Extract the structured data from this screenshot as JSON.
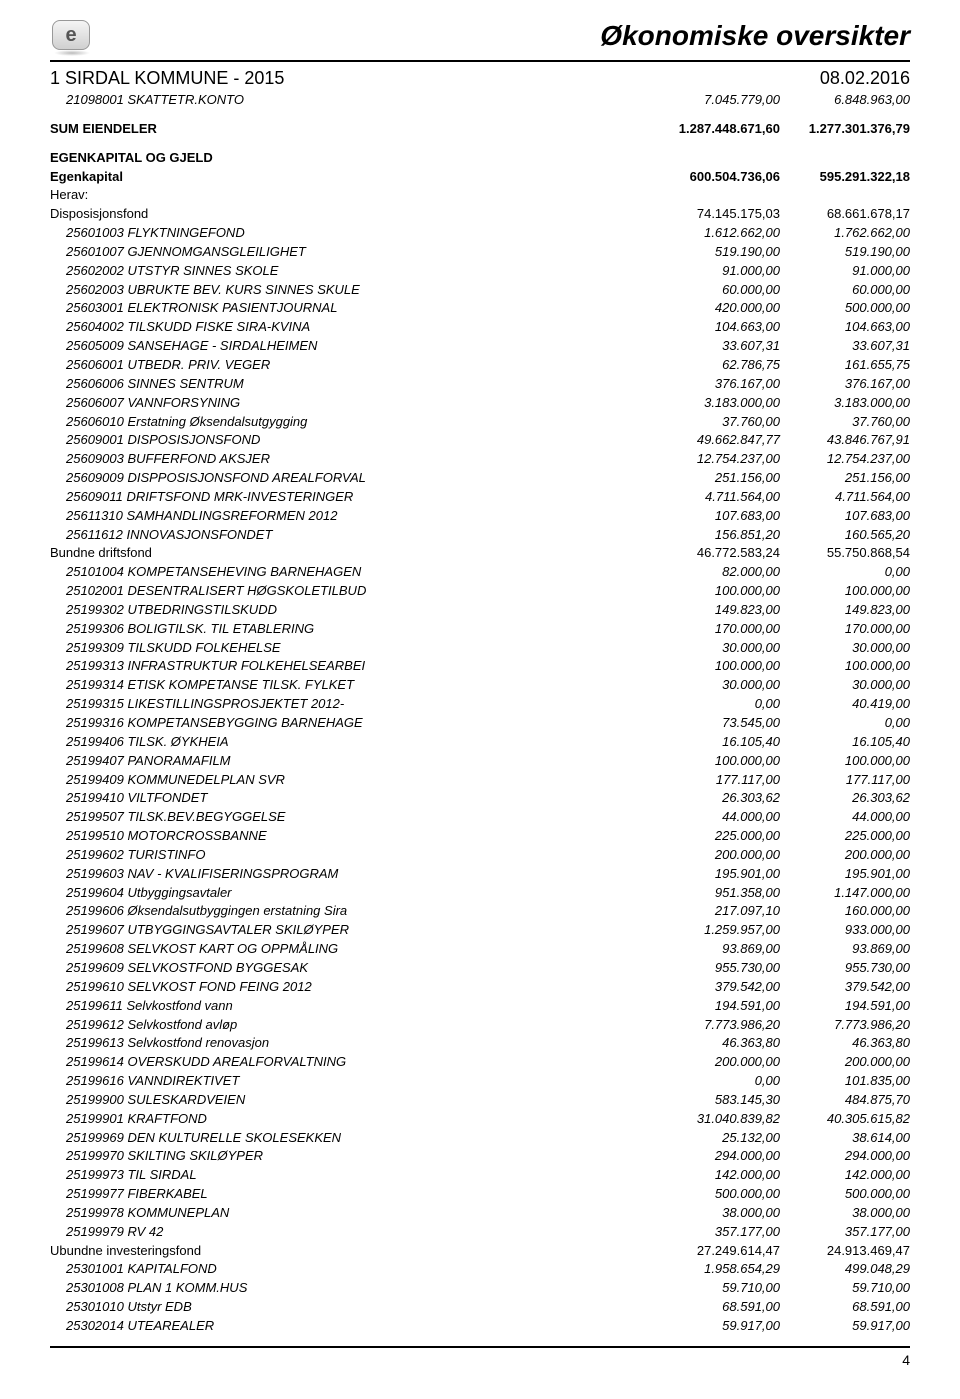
{
  "header": {
    "title": "Økonomiske oversikter",
    "org": "1 SIRDAL KOMMUNE - 2015",
    "date": "08.02.2016"
  },
  "top_rows": [
    {
      "label": "21098001 SKATTETR.KONTO",
      "c1": "7.045.779,00",
      "c2": "6.848.963,00",
      "italic": true,
      "indent": 1
    }
  ],
  "sum_row": {
    "label": "SUM EIENDELER",
    "c1": "1.287.448.671,60",
    "c2": "1.277.301.376,79"
  },
  "equity_header": {
    "label": "EGENKAPITAL OG GJELD"
  },
  "equity_rows": [
    {
      "label": "Egenkapital",
      "c1": "600.504.736,06",
      "c2": "595.291.322,18",
      "bold": true,
      "indent": 0
    },
    {
      "label": "Herav:",
      "indent": 0
    },
    {
      "label": "Disposisjonsfond",
      "c1": "74.145.175,03",
      "c2": "68.661.678,17",
      "indent": 0
    },
    {
      "label": "25601003 FLYKTNINGEFOND",
      "c1": "1.612.662,00",
      "c2": "1.762.662,00",
      "italic": true,
      "indent": 1
    },
    {
      "label": "25601007 GJENNOMGANSGLEILIGHET",
      "c1": "519.190,00",
      "c2": "519.190,00",
      "italic": true,
      "indent": 1
    },
    {
      "label": "25602002 UTSTYR SINNES SKOLE",
      "c1": "91.000,00",
      "c2": "91.000,00",
      "italic": true,
      "indent": 1
    },
    {
      "label": "25602003 UBRUKTE BEV. KURS SINNES SKULE",
      "c1": "60.000,00",
      "c2": "60.000,00",
      "italic": true,
      "indent": 1
    },
    {
      "label": "25603001 ELEKTRONISK PASIENTJOURNAL",
      "c1": "420.000,00",
      "c2": "500.000,00",
      "italic": true,
      "indent": 1
    },
    {
      "label": "25604002 TILSKUDD FISKE SIRA-KVINA",
      "c1": "104.663,00",
      "c2": "104.663,00",
      "italic": true,
      "indent": 1
    },
    {
      "label": "25605009 SANSEHAGE - SIRDALHEIMEN",
      "c1": "33.607,31",
      "c2": "33.607,31",
      "italic": true,
      "indent": 1
    },
    {
      "label": "25606001 UTBEDR. PRIV. VEGER",
      "c1": "62.786,75",
      "c2": "161.655,75",
      "italic": true,
      "indent": 1
    },
    {
      "label": "25606006 SINNES SENTRUM",
      "c1": "376.167,00",
      "c2": "376.167,00",
      "italic": true,
      "indent": 1
    },
    {
      "label": "25606007 VANNFORSYNING",
      "c1": "3.183.000,00",
      "c2": "3.183.000,00",
      "italic": true,
      "indent": 1
    },
    {
      "label": "25606010 Erstatning Øksendalsutgygging",
      "c1": "37.760,00",
      "c2": "37.760,00",
      "italic": true,
      "indent": 1
    },
    {
      "label": "25609001 DISPOSISJONSFOND",
      "c1": "49.662.847,77",
      "c2": "43.846.767,91",
      "italic": true,
      "indent": 1
    },
    {
      "label": "25609003 BUFFERFOND AKSJER",
      "c1": "12.754.237,00",
      "c2": "12.754.237,00",
      "italic": true,
      "indent": 1
    },
    {
      "label": "25609009 DISPPOSISJONSFOND AREALFORVAL",
      "c1": "251.156,00",
      "c2": "251.156,00",
      "italic": true,
      "indent": 1
    },
    {
      "label": "25609011 DRIFTSFOND MRK-INVESTERINGER",
      "c1": "4.711.564,00",
      "c2": "4.711.564,00",
      "italic": true,
      "indent": 1
    },
    {
      "label": "25611310 SAMHANDLINGSREFORMEN 2012",
      "c1": "107.683,00",
      "c2": "107.683,00",
      "italic": true,
      "indent": 1
    },
    {
      "label": "25611612 INNOVASJONSFONDET",
      "c1": "156.851,20",
      "c2": "160.565,20",
      "italic": true,
      "indent": 1
    },
    {
      "label": "Bundne driftsfond",
      "c1": "46.772.583,24",
      "c2": "55.750.868,54",
      "indent": 0
    },
    {
      "label": "25101004 KOMPETANSEHEVING BARNEHAGEN",
      "c1": "82.000,00",
      "c2": "0,00",
      "italic": true,
      "indent": 1
    },
    {
      "label": "25102001 DESENTRALISERT HØGSKOLETILBUD",
      "c1": "100.000,00",
      "c2": "100.000,00",
      "italic": true,
      "indent": 1
    },
    {
      "label": "25199302 UTBEDRINGSTILSKUDD",
      "c1": "149.823,00",
      "c2": "149.823,00",
      "italic": true,
      "indent": 1
    },
    {
      "label": "25199306 BOLIGTILSK. TIL ETABLERING",
      "c1": "170.000,00",
      "c2": "170.000,00",
      "italic": true,
      "indent": 1
    },
    {
      "label": "25199309 TILSKUDD FOLKEHELSE",
      "c1": "30.000,00",
      "c2": "30.000,00",
      "italic": true,
      "indent": 1
    },
    {
      "label": "25199313 INFRASTRUKTUR FOLKEHELSEARBEI",
      "c1": "100.000,00",
      "c2": "100.000,00",
      "italic": true,
      "indent": 1
    },
    {
      "label": "25199314 ETISK KOMPETANSE TILSK. FYLKET",
      "c1": "30.000,00",
      "c2": "30.000,00",
      "italic": true,
      "indent": 1
    },
    {
      "label": "25199315 LIKESTILLINGSPROSJEKTET 2012-",
      "c1": "0,00",
      "c2": "40.419,00",
      "italic": true,
      "indent": 1
    },
    {
      "label": "25199316 KOMPETANSEBYGGING BARNEHAGE",
      "c1": "73.545,00",
      "c2": "0,00",
      "italic": true,
      "indent": 1
    },
    {
      "label": "25199406 TILSK. ØYKHEIA",
      "c1": "16.105,40",
      "c2": "16.105,40",
      "italic": true,
      "indent": 1
    },
    {
      "label": "25199407 PANORAMAFILM",
      "c1": "100.000,00",
      "c2": "100.000,00",
      "italic": true,
      "indent": 1
    },
    {
      "label": "25199409 KOMMUNEDELPLAN SVR",
      "c1": "177.117,00",
      "c2": "177.117,00",
      "italic": true,
      "indent": 1
    },
    {
      "label": "25199410 VILTFONDET",
      "c1": "26.303,62",
      "c2": "26.303,62",
      "italic": true,
      "indent": 1
    },
    {
      "label": "25199507 TILSK.BEV.BEGYGGELSE",
      "c1": "44.000,00",
      "c2": "44.000,00",
      "italic": true,
      "indent": 1
    },
    {
      "label": "25199510 MOTORCROSSBANNE",
      "c1": "225.000,00",
      "c2": "225.000,00",
      "italic": true,
      "indent": 1
    },
    {
      "label": "25199602 TURISTINFO",
      "c1": "200.000,00",
      "c2": "200.000,00",
      "italic": true,
      "indent": 1
    },
    {
      "label": "25199603 NAV - KVALIFISERINGSPROGRAM",
      "c1": "195.901,00",
      "c2": "195.901,00",
      "italic": true,
      "indent": 1
    },
    {
      "label": "25199604 Utbyggingsavtaler",
      "c1": "951.358,00",
      "c2": "1.147.000,00",
      "italic": true,
      "indent": 1
    },
    {
      "label": "25199606 Øksendalsutbyggingen erstatning Sira",
      "c1": "217.097,10",
      "c2": "160.000,00",
      "italic": true,
      "indent": 1
    },
    {
      "label": "25199607 UTBYGGINGSAVTALER SKILØYPER",
      "c1": "1.259.957,00",
      "c2": "933.000,00",
      "italic": true,
      "indent": 1
    },
    {
      "label": "25199608 SELVKOST KART OG OPPMÅLING",
      "c1": "93.869,00",
      "c2": "93.869,00",
      "italic": true,
      "indent": 1
    },
    {
      "label": "25199609 SELVKOSTFOND BYGGESAK",
      "c1": "955.730,00",
      "c2": "955.730,00",
      "italic": true,
      "indent": 1
    },
    {
      "label": "25199610 SELVKOST FOND FEING 2012",
      "c1": "379.542,00",
      "c2": "379.542,00",
      "italic": true,
      "indent": 1
    },
    {
      "label": "25199611 Selvkostfond vann",
      "c1": "194.591,00",
      "c2": "194.591,00",
      "italic": true,
      "indent": 1
    },
    {
      "label": "25199612 Selvkostfond avløp",
      "c1": "7.773.986,20",
      "c2": "7.773.986,20",
      "italic": true,
      "indent": 1
    },
    {
      "label": "25199613 Selvkostfond renovasjon",
      "c1": "46.363,80",
      "c2": "46.363,80",
      "italic": true,
      "indent": 1
    },
    {
      "label": "25199614 OVERSKUDD AREALFORVALTNING",
      "c1": "200.000,00",
      "c2": "200.000,00",
      "italic": true,
      "indent": 1
    },
    {
      "label": "25199616 VANNDIREKTIVET",
      "c1": "0,00",
      "c2": "101.835,00",
      "italic": true,
      "indent": 1
    },
    {
      "label": "25199900 SULESKARDVEIEN",
      "c1": "583.145,30",
      "c2": "484.875,70",
      "italic": true,
      "indent": 1
    },
    {
      "label": "25199901 KRAFTFOND",
      "c1": "31.040.839,82",
      "c2": "40.305.615,82",
      "italic": true,
      "indent": 1
    },
    {
      "label": "25199969 DEN KULTURELLE SKOLESEKKEN",
      "c1": "25.132,00",
      "c2": "38.614,00",
      "italic": true,
      "indent": 1
    },
    {
      "label": "25199970 SKILTING SKILØYPER",
      "c1": "294.000,00",
      "c2": "294.000,00",
      "italic": true,
      "indent": 1
    },
    {
      "label": "25199973 TIL SIRDAL",
      "c1": "142.000,00",
      "c2": "142.000,00",
      "italic": true,
      "indent": 1
    },
    {
      "label": "25199977 FIBERKABEL",
      "c1": "500.000,00",
      "c2": "500.000,00",
      "italic": true,
      "indent": 1
    },
    {
      "label": "25199978 KOMMUNEPLAN",
      "c1": "38.000,00",
      "c2": "38.000,00",
      "italic": true,
      "indent": 1
    },
    {
      "label": "25199979 RV 42",
      "c1": "357.177,00",
      "c2": "357.177,00",
      "italic": true,
      "indent": 1
    },
    {
      "label": "Ubundne investeringsfond",
      "c1": "27.249.614,47",
      "c2": "24.913.469,47",
      "indent": 0
    },
    {
      "label": "25301001 KAPITALFOND",
      "c1": "1.958.654,29",
      "c2": "499.048,29",
      "italic": true,
      "indent": 1
    },
    {
      "label": "25301008 PLAN 1 KOMM.HUS",
      "c1": "59.710,00",
      "c2": "59.710,00",
      "italic": true,
      "indent": 1
    },
    {
      "label": "25301010 Utstyr EDB",
      "c1": "68.591,00",
      "c2": "68.591,00",
      "italic": true,
      "indent": 1
    },
    {
      "label": "25302014 UTEAREALER",
      "c1": "59.917,00",
      "c2": "59.917,00",
      "italic": true,
      "indent": 1
    }
  ],
  "footer": {
    "page": "4"
  }
}
